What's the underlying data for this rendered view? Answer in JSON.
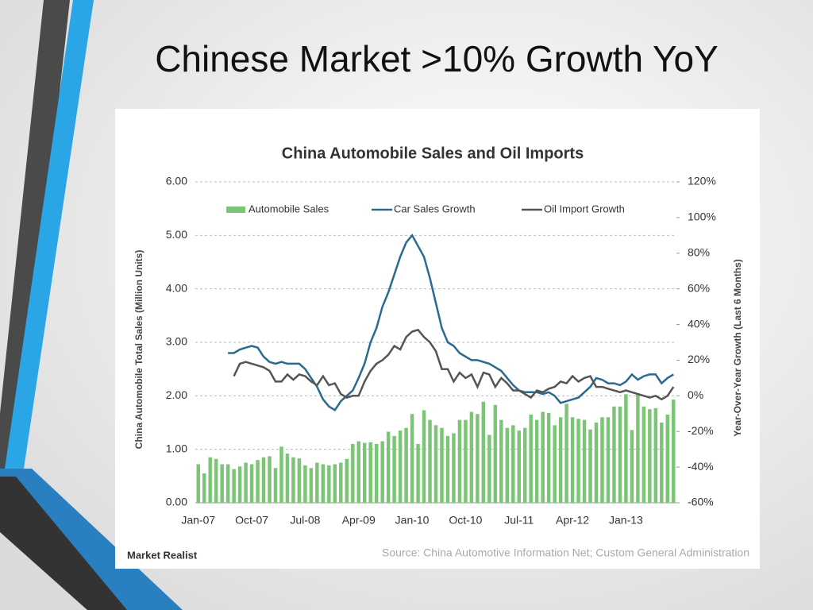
{
  "slide_title": "Chinese Market >10% Growth YoY",
  "chart_data": {
    "type": "bar_line",
    "title": "China Automobile Sales and Oil Imports",
    "ylabel": "China Automobile Total Sales (Million Units)",
    "y2label": "Year-Over-Year Growth (Last 6 Months)",
    "source": "Source: China Automotive Information Net; Custom General Administration",
    "brand": "Market Realist",
    "legend": "top",
    "grid": true,
    "categories": [
      "Jan-07",
      null,
      null,
      null,
      null,
      null,
      null,
      null,
      null,
      "Oct-07",
      null,
      null,
      null,
      null,
      null,
      null,
      null,
      null,
      "Jul-08",
      null,
      null,
      null,
      null,
      null,
      null,
      null,
      null,
      "Apr-09",
      null,
      null,
      null,
      null,
      null,
      null,
      null,
      null,
      "Jan-10",
      null,
      null,
      null,
      null,
      null,
      null,
      null,
      null,
      "Oct-10",
      null,
      null,
      null,
      null,
      null,
      null,
      null,
      null,
      "Jul-11",
      null,
      null,
      null,
      null,
      null,
      null,
      null,
      null,
      "Apr-12",
      null,
      null,
      null,
      null,
      null,
      null,
      null,
      null,
      "Jan-13",
      null,
      null,
      null,
      null,
      null,
      null,
      null,
      null
    ],
    "series": [
      {
        "name": "Automobile Sales",
        "color": "#7cc576",
        "type": "bar",
        "axis": "y",
        "values": [
          0.72,
          0.55,
          0.85,
          0.82,
          0.72,
          0.72,
          0.63,
          0.68,
          0.75,
          0.72,
          0.8,
          0.85,
          0.87,
          0.65,
          1.05,
          0.92,
          0.85,
          0.83,
          0.7,
          0.65,
          0.75,
          0.72,
          0.7,
          0.72,
          0.75,
          0.82,
          1.1,
          1.15,
          1.12,
          1.13,
          1.1,
          1.15,
          1.33,
          1.25,
          1.35,
          1.4,
          1.66,
          1.1,
          1.73,
          1.55,
          1.45,
          1.4,
          1.25,
          1.3,
          1.55,
          1.55,
          1.7,
          1.66,
          1.89,
          1.27,
          1.83,
          1.55,
          1.4,
          1.45,
          1.35,
          1.4,
          1.65,
          1.55,
          1.7,
          1.68,
          1.45,
          1.6,
          1.85,
          1.6,
          1.57,
          1.55,
          1.37,
          1.5,
          1.6,
          1.6,
          1.8,
          1.8,
          2.03,
          1.36,
          2.03,
          1.8,
          1.75,
          1.77,
          1.5,
          1.65,
          1.93
        ]
      },
      {
        "name": "Car Sales Growth",
        "color": "#2b6a8f",
        "type": "line",
        "axis": "y2",
        "values": [
          null,
          null,
          null,
          null,
          null,
          24,
          24,
          26,
          27,
          28,
          27,
          22,
          19,
          18,
          19,
          18,
          18,
          18,
          15,
          10,
          5,
          -2,
          -6,
          -8,
          -3,
          0,
          3,
          10,
          18,
          30,
          38,
          50,
          58,
          68,
          78,
          86,
          90,
          84,
          78,
          66,
          52,
          38,
          30,
          28,
          24,
          22,
          20,
          20,
          19,
          18,
          16,
          14,
          10,
          6,
          3,
          2,
          2,
          2,
          1,
          2,
          0,
          -4,
          -3,
          -2,
          -1,
          2,
          5,
          10,
          9,
          7,
          7,
          6,
          8,
          12,
          9,
          11,
          12,
          12,
          7,
          10,
          12
        ]
      },
      {
        "name": "Oil Import Growth",
        "color": "#555555",
        "type": "line",
        "axis": "y2",
        "values": [
          null,
          null,
          null,
          null,
          null,
          null,
          11,
          18,
          19,
          18,
          17,
          16,
          14,
          8,
          8,
          12,
          9,
          12,
          11,
          8,
          6,
          11,
          6,
          7,
          1,
          -1,
          0,
          0,
          8,
          14,
          18,
          20,
          23,
          28,
          26,
          33,
          36,
          37,
          33,
          30,
          25,
          15,
          15,
          8,
          13,
          10,
          12,
          5,
          13,
          12,
          5,
          10,
          7,
          3,
          3,
          1,
          -1,
          3,
          2,
          4,
          5,
          8,
          7,
          11,
          8,
          10,
          11,
          5,
          5,
          4,
          3,
          2,
          3,
          2,
          1,
          0,
          -1,
          0,
          -2,
          0,
          5
        ]
      }
    ],
    "ylim": [
      0,
      6
    ],
    "yticks": [
      {
        "value": 0,
        "label": "0.00"
      },
      {
        "value": 1,
        "label": "1.00"
      },
      {
        "value": 2,
        "label": "2.00"
      },
      {
        "value": 3,
        "label": "3.00"
      },
      {
        "value": 4,
        "label": "4.00"
      },
      {
        "value": 5,
        "label": "5.00"
      },
      {
        "value": 6,
        "label": "6.00"
      }
    ],
    "y2lim": [
      -60,
      120
    ],
    "y2ticks": [
      {
        "value": -60,
        "label": "-60%"
      },
      {
        "value": -40,
        "label": "-40%"
      },
      {
        "value": -20,
        "label": "-20%"
      },
      {
        "value": 0,
        "label": "0%"
      },
      {
        "value": 20,
        "label": "20%"
      },
      {
        "value": 40,
        "label": "40%"
      },
      {
        "value": 60,
        "label": "60%"
      },
      {
        "value": 80,
        "label": "80%"
      },
      {
        "value": 100,
        "label": "100%"
      },
      {
        "value": 120,
        "label": "120%"
      }
    ]
  }
}
